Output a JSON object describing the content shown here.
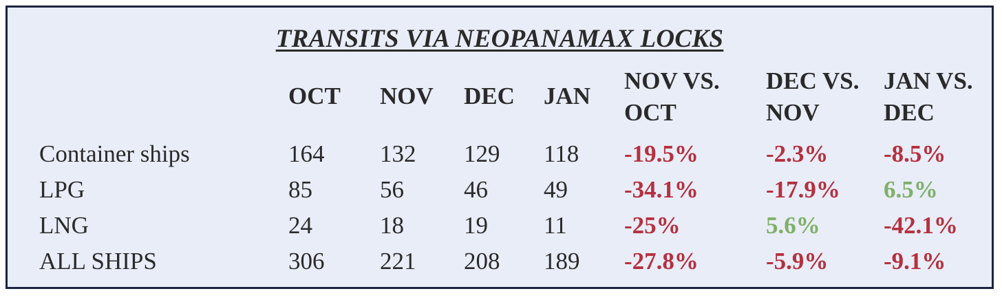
{
  "chart_data": {
    "type": "table",
    "title": "TRANSITS VIA NEOPANAMAX LOCKS",
    "columns": [
      "OCT",
      "NOV",
      "DEC",
      "JAN",
      "NOV VS. OCT",
      "DEC VS. NOV",
      "JAN VS. DEC"
    ],
    "rows": [
      {
        "label": "Container ships",
        "values": [
          "164",
          "132",
          "129",
          "118"
        ],
        "changes": [
          "-19.5%",
          "-2.3%",
          "-8.5%"
        ]
      },
      {
        "label": "LPG",
        "values": [
          "85",
          "56",
          "46",
          "49"
        ],
        "changes": [
          "-34.1%",
          "-17.9%",
          "6.5%"
        ]
      },
      {
        "label": "LNG",
        "values": [
          "24",
          "18",
          "19",
          "11"
        ],
        "changes": [
          "-25%",
          "5.6%",
          "-42.1%"
        ]
      },
      {
        "label": "ALL SHIPS",
        "values": [
          "306",
          "221",
          "208",
          "189"
        ],
        "changes": [
          "-27.8%",
          "-5.9%",
          "-9.1%"
        ]
      }
    ]
  },
  "colors": {
    "negative": "#b5313f",
    "positive": "#7fb068",
    "background": "#e9edf8",
    "border": "#1c2340"
  }
}
